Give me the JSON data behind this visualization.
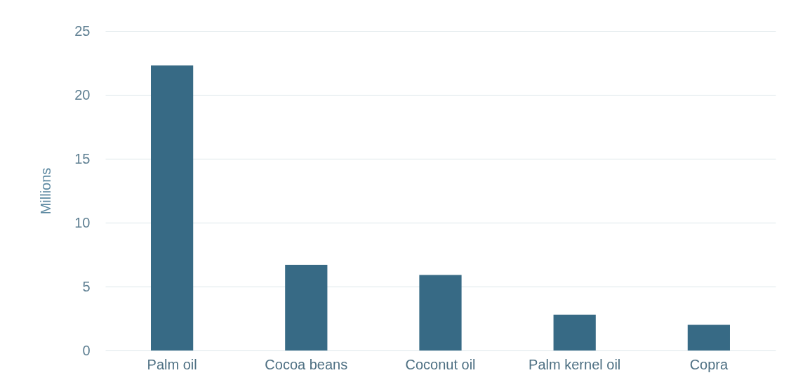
{
  "chart_data": {
    "type": "bar",
    "ylabel": "Millions",
    "categories": [
      "Palm oil",
      "Cocoa beans",
      "Coconut oil",
      "Palm kernel oil",
      "Copra"
    ],
    "values": [
      22.3,
      6.7,
      5.9,
      2.8,
      2.0
    ],
    "color": "#376a85",
    "ylim": [
      0,
      25
    ],
    "yticks": [
      0,
      5,
      10,
      15,
      20,
      25
    ],
    "grid": "y"
  }
}
